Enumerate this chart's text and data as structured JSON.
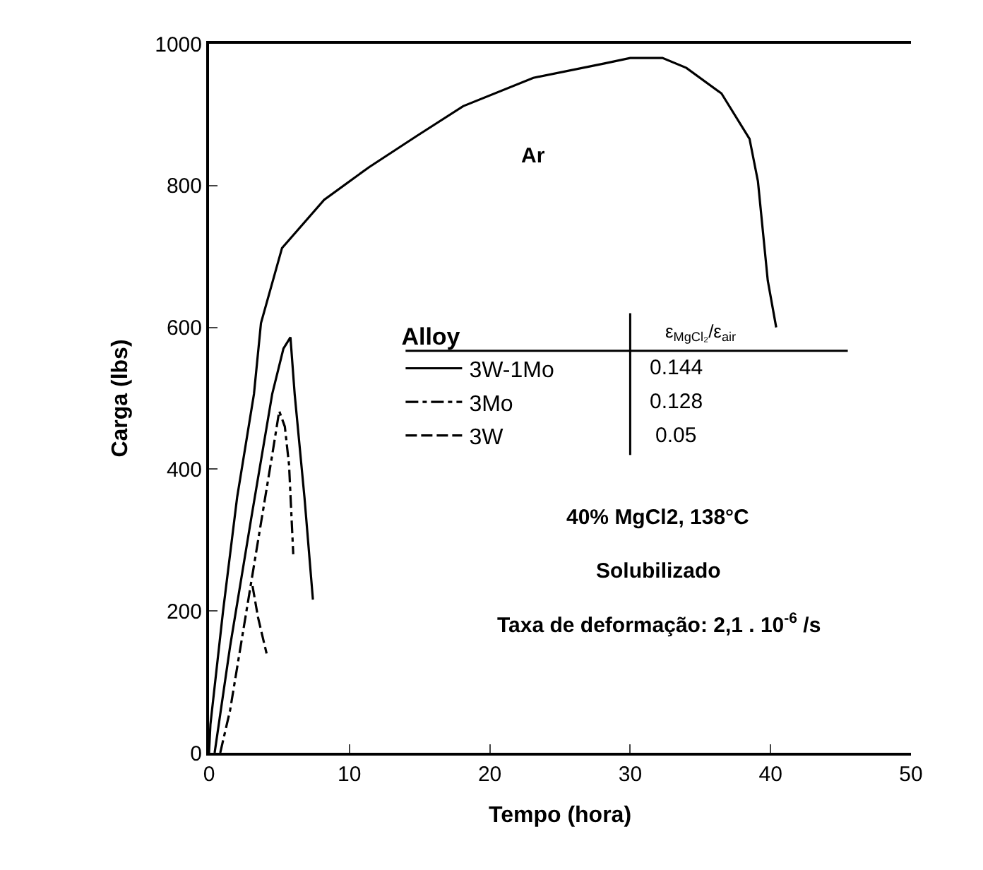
{
  "chart_data": {
    "type": "line",
    "xlabel": "Tempo (hora)",
    "ylabel": "Carga (lbs)",
    "legend_title": "Alloy",
    "xlim": [
      0,
      50
    ],
    "xticks": [
      0,
      10,
      20,
      30,
      40,
      50
    ],
    "ylim": [
      0,
      1000
    ],
    "yticks": [
      0,
      200,
      400,
      600,
      800,
      1000
    ],
    "legend": "left",
    "marker": "none",
    "series": [
      {
        "name": "Ar",
        "color": "#000000",
        "line_style": "solid",
        "x": [
          0,
          0.1,
          1,
          2,
          3.2,
          3.7,
          5.2,
          8.2,
          11.4,
          14.8,
          18.1,
          23.1,
          28.1,
          30,
          32.3,
          34,
          36.5,
          38.5,
          39.1,
          39.8,
          40.4
        ],
        "values": [
          0,
          40,
          200,
          360,
          506,
          606,
          712,
          780,
          826,
          870,
          912,
          952,
          972,
          980,
          980,
          966,
          930,
          866,
          806,
          666,
          600
        ]
      },
      {
        "name": "3W-1Mo",
        "color": "#000000",
        "line_style": "solid",
        "x": [
          0.4,
          1.5,
          3,
          4.5,
          5.3,
          5.8,
          6.1,
          6.8,
          7.4
        ],
        "values": [
          0,
          150,
          330,
          506,
          570,
          586,
          506,
          360,
          216
        ]
      },
      {
        "name": "3Mo",
        "color": "#000000",
        "line_style": "dashdot",
        "x": [
          0.8,
          1.5,
          2.5,
          3.5,
          4.5,
          5.0,
          5.4,
          5.7,
          6.0
        ],
        "values": [
          0,
          60,
          180,
          300,
          420,
          482,
          460,
          406,
          280
        ]
      },
      {
        "name": "3W",
        "color": "#000000",
        "line_style": "dashed",
        "x": [
          3.1,
          3.5,
          4.1
        ],
        "values": [
          235,
          190,
          140
        ]
      }
    ],
    "annotations": [
      "ε$_{MgCl₂}$/ε$_{air}$",
      "0.144",
      "0.128",
      "0.05",
      "40% MgCl2, 138°C",
      "Solubilizado",
      "Taxa de deformação: 2,1 . 10$^{-6}$ /s"
    ]
  }
}
